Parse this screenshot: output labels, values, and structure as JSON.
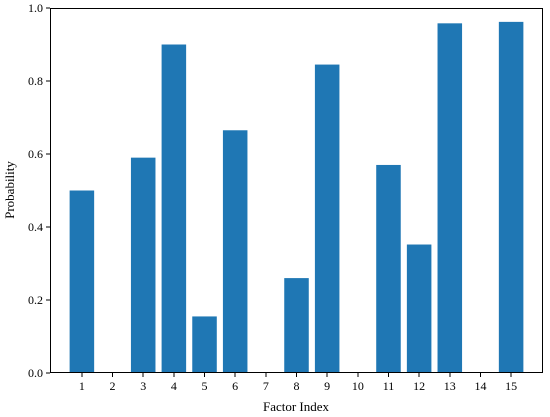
{
  "chart_data": {
    "type": "bar",
    "categories": [
      "1",
      "2",
      "3",
      "4",
      "5",
      "6",
      "7",
      "8",
      "9",
      "10",
      "11",
      "12",
      "13",
      "14",
      "15"
    ],
    "values": [
      0.5,
      0,
      0.59,
      0.9,
      0.155,
      0.665,
      0,
      0.26,
      0.845,
      0,
      0.57,
      0.352,
      0.958,
      0,
      0.962
    ],
    "xlabel": "Factor Index",
    "ylabel": "Probability",
    "ylim": [
      0,
      1.0
    ],
    "yticks": [
      "0.0",
      "0.2",
      "0.4",
      "0.6",
      "0.8",
      "1.0"
    ],
    "grid": false,
    "bar_color": "#1f77b4"
  }
}
